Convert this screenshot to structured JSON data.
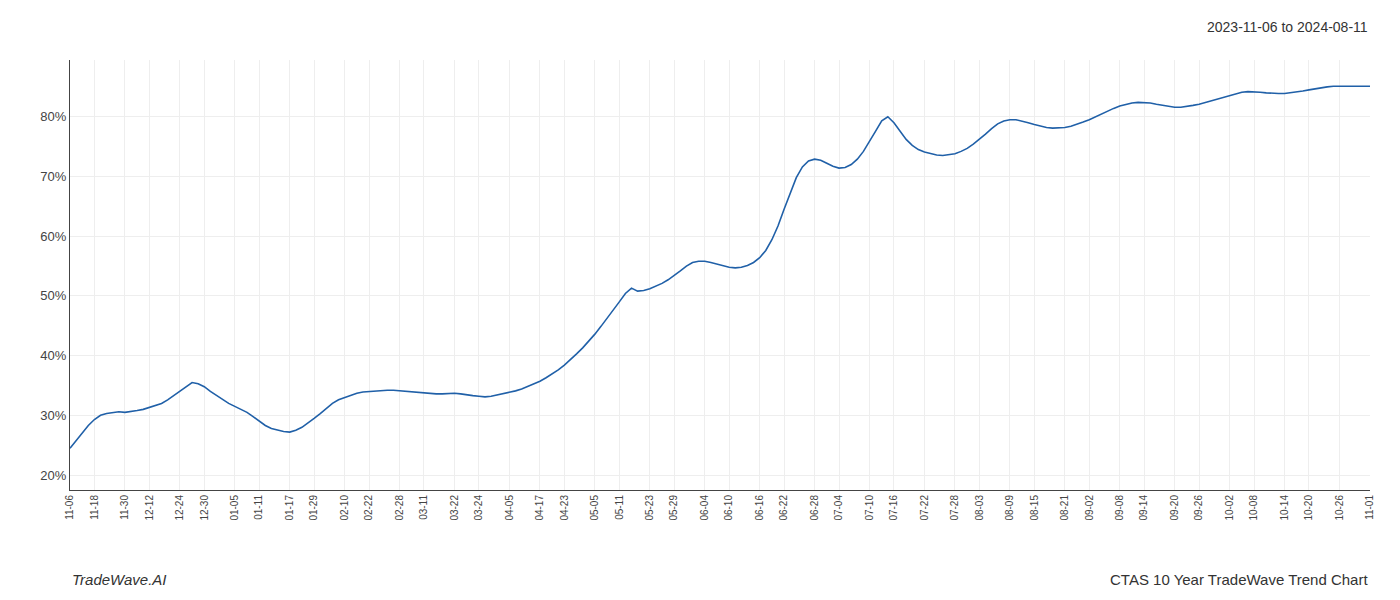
{
  "chart_data": {
    "type": "line",
    "title": "CTAS 10 Year TradeWave Trend Chart",
    "subtitle": "2023-11-06 to 2024-08-11",
    "annotations": [
      "TradeWave.AI"
    ],
    "color": "#2060a8",
    "grid": true,
    "categories": [
      "11-06",
      null,
      null,
      null,
      "11-18",
      null,
      null,
      null,
      null,
      "11-30",
      null,
      null,
      null,
      "12-12",
      null,
      null,
      null,
      null,
      "12-24",
      null,
      null,
      null,
      "12-30",
      null,
      null,
      null,
      null,
      "01-05",
      null,
      null,
      null,
      "01-11",
      null,
      null,
      null,
      null,
      "01-17",
      null,
      null,
      null,
      "01-29",
      null,
      null,
      null,
      null,
      "02-10",
      null,
      null,
      null,
      "02-22",
      null,
      null,
      null,
      null,
      "02-28",
      null,
      null,
      null,
      "03-11",
      null,
      null,
      null,
      null,
      "03-22",
      null,
      null,
      null,
      "03-24",
      null,
      null,
      null,
      null,
      "04-05",
      null,
      null,
      null,
      null,
      "04-17",
      null,
      null,
      null,
      "04-23",
      null,
      null,
      null,
      null,
      "05-05",
      null,
      null,
      null,
      "05-11",
      null,
      null,
      null,
      null,
      "05-23",
      null,
      null,
      null,
      "05-29",
      null,
      null,
      null,
      null,
      "06-04",
      null,
      null,
      null,
      "06-10",
      null,
      null,
      null,
      null,
      "06-16",
      null,
      null,
      null,
      "06-22",
      null,
      null,
      null,
      null,
      "06-28",
      null,
      null,
      null,
      "07-04",
      null,
      null,
      null,
      null,
      "07-10",
      null,
      null,
      null,
      "07-16",
      null,
      null,
      null,
      null,
      "07-22",
      null,
      null,
      null,
      null,
      "07-28",
      null,
      null,
      null,
      "08-03",
      null,
      null,
      null,
      null,
      "08-09",
      null,
      null,
      null,
      "08-15",
      null,
      null,
      null,
      null,
      "08-21",
      null,
      null,
      null,
      "09-02",
      null,
      null,
      null,
      null,
      "09-08",
      null,
      null,
      null,
      "09-14",
      null,
      null,
      null,
      null,
      "09-20",
      null,
      null,
      null,
      "09-26",
      null,
      null,
      null,
      null,
      "10-02",
      null,
      null,
      null,
      "10-08",
      null,
      null,
      null,
      null,
      "10-14",
      null,
      null,
      null,
      "10-20",
      null,
      null,
      null,
      null,
      "10-26",
      null,
      null,
      null,
      null,
      "11-01"
    ],
    "values": [
      0.245,
      0.258,
      0.27,
      0.283,
      0.293,
      0.3,
      0.303,
      0.305,
      0.306,
      0.305,
      0.306,
      0.308,
      0.31,
      0.313,
      0.316,
      0.32,
      0.326,
      0.333,
      0.34,
      0.348,
      0.355,
      0.353,
      0.348,
      0.34,
      0.333,
      0.326,
      0.32,
      0.315,
      0.31,
      0.305,
      0.298,
      0.29,
      0.283,
      0.278,
      0.275,
      0.273,
      0.272,
      0.275,
      0.28,
      0.287,
      0.295,
      0.303,
      0.312,
      0.32,
      0.326,
      0.33,
      0.334,
      0.337,
      0.339,
      0.34,
      0.341,
      0.342,
      0.342,
      0.342,
      0.341,
      0.34,
      0.339,
      0.338,
      0.337,
      0.336,
      0.336,
      0.336,
      0.337,
      0.337,
      0.336,
      0.334,
      0.333,
      0.332,
      0.331,
      0.332,
      0.334,
      0.336,
      0.338,
      0.341,
      0.344,
      0.348,
      0.352,
      0.357,
      0.363,
      0.369,
      0.376,
      0.384,
      0.393,
      0.403,
      0.413,
      0.424,
      0.436,
      0.449,
      0.462,
      0.476,
      0.49,
      0.504,
      0.513,
      0.508,
      0.509,
      0.512,
      0.516,
      0.521,
      0.527,
      0.534,
      0.542,
      0.55,
      0.556,
      0.558,
      0.558,
      0.556,
      0.553,
      0.55,
      0.548,
      0.547,
      0.548,
      0.551,
      0.556,
      0.564,
      0.576,
      0.594,
      0.617,
      0.645,
      0.673,
      0.698,
      0.716,
      0.726,
      0.729,
      0.727,
      0.722,
      0.717,
      0.714,
      0.715,
      0.72,
      0.729,
      0.742,
      0.758,
      0.776,
      0.793,
      0.8,
      0.79,
      0.775,
      0.762,
      0.752,
      0.745,
      0.741,
      0.738,
      0.736,
      0.735,
      0.736,
      0.738,
      0.742,
      0.747,
      0.754,
      0.762,
      0.771,
      0.78,
      0.788,
      0.793,
      0.795,
      0.795,
      0.793,
      0.79,
      0.787,
      0.784,
      0.782,
      0.781,
      0.781,
      0.782,
      0.784,
      0.787,
      0.791,
      0.795,
      0.8,
      0.805,
      0.81,
      0.814,
      0.818,
      0.821,
      0.823,
      0.824,
      0.824,
      0.823,
      0.821,
      0.819,
      0.817,
      0.816,
      0.816,
      0.817,
      0.819,
      0.821,
      0.824,
      0.827,
      0.83,
      0.833,
      0.836,
      0.839,
      0.841,
      0.842,
      0.842,
      0.841,
      0.84,
      0.839,
      0.839,
      0.839,
      0.84,
      0.841,
      0.843,
      0.845,
      0.847,
      0.849,
      0.85,
      0.851,
      0.851,
      0.851,
      0.851,
      0.851,
      0.851,
      0.851
    ],
    "ylim": [
      0.175,
      0.895
    ],
    "yticks": [
      {
        "value": 0.2,
        "label": "20%"
      },
      {
        "value": 0.3,
        "label": "30%"
      },
      {
        "value": 0.4,
        "label": "40%"
      },
      {
        "value": 0.5,
        "label": "50%"
      },
      {
        "value": 0.6,
        "label": "60%"
      },
      {
        "value": 0.7,
        "label": "70%"
      },
      {
        "value": 0.8,
        "label": "80%"
      }
    ]
  }
}
